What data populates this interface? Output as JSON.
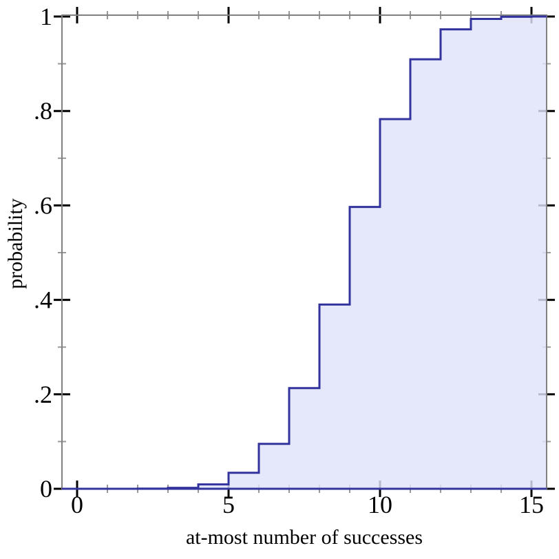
{
  "chart_data": {
    "type": "area",
    "subtype": "cdf-step-plot",
    "title": "",
    "xlabel": "at-most number of successes",
    "ylabel": "probability",
    "x": [
      0,
      1,
      2,
      3,
      4,
      5,
      6,
      7,
      8,
      9,
      10,
      11,
      12,
      13,
      14,
      15
    ],
    "values": [
      1e-06,
      2.5e-05,
      0.000279,
      0.001928,
      0.009348,
      0.033833,
      0.095047,
      0.213103,
      0.390187,
      0.596784,
      0.782722,
      0.909497,
      0.972885,
      0.994826,
      0.999528,
      1.0
    ],
    "xlim": [
      -0.5,
      15.5
    ],
    "ylim": [
      0,
      1
    ],
    "grid": false,
    "legend": "none",
    "x_axis": {
      "major_ticks": [
        0,
        5,
        10,
        15
      ],
      "major_tick_labels": [
        "0",
        "5",
        "10",
        "15"
      ],
      "minor_ticks": [
        1,
        2,
        3,
        4,
        6,
        7,
        8,
        9,
        11,
        12,
        13,
        14
      ]
    },
    "y_axis": {
      "major_ticks": [
        0,
        0.2,
        0.4,
        0.6,
        0.8,
        1
      ],
      "major_tick_labels": [
        "0",
        ".2",
        ".4",
        ".6",
        ".8",
        "1"
      ],
      "minor_ticks": [
        0.1,
        0.3,
        0.5,
        0.7,
        0.9
      ]
    },
    "colors": {
      "line": "#33339e",
      "fill": "#e8eafa",
      "fill_rgba": "rgba(223,227,250,0.82)",
      "frame": "#808080",
      "major_tick": "#000000",
      "minor_tick": "#999999",
      "text": "#000000",
      "background": "#ffffff"
    }
  }
}
